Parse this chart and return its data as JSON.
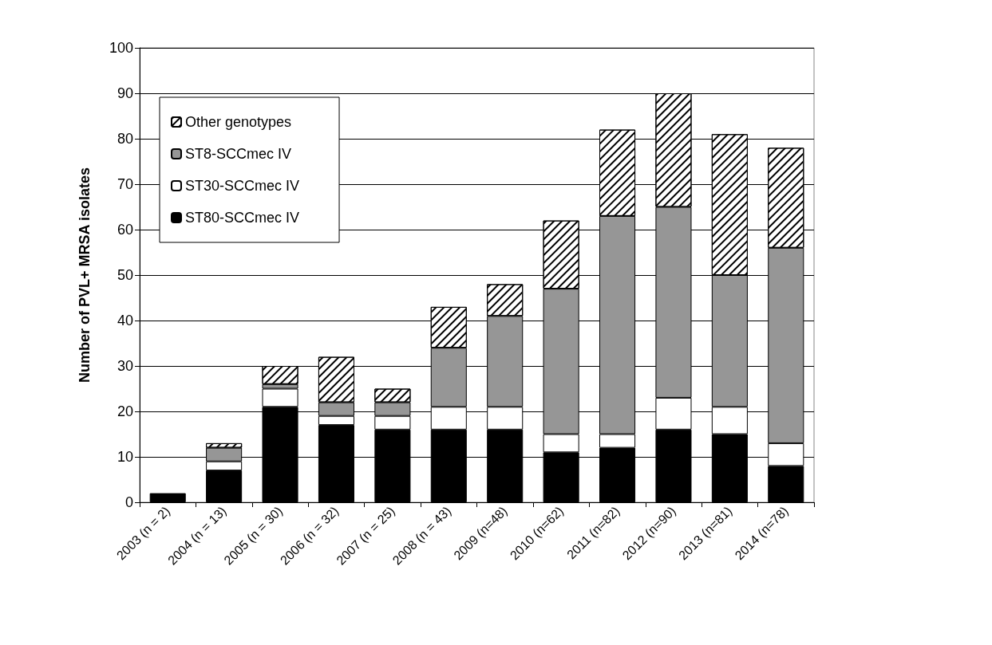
{
  "chart_data": {
    "type": "bar",
    "stacked": true,
    "ylabel": "Number of PVL+ MRSA isolates",
    "categories": [
      "2003 (n = 2)",
      "2004 (n = 13)",
      "2005 (n = 30)",
      "2006 (n = 32)",
      "2007 (n = 25)",
      "2008 (n = 43)",
      "2009 (n=48)",
      "2010 (n=62)",
      "2011 (n=82)",
      "2012 (n=90)",
      "2013 (n=81)",
      "2014 (n=78)"
    ],
    "series": [
      {
        "name": "ST80-SCCmec IV",
        "color": "#000000",
        "values": [
          2,
          7,
          21,
          17,
          16,
          16,
          16,
          11,
          12,
          16,
          15,
          8
        ]
      },
      {
        "name": "ST30-SCCmec IV",
        "color": "#ffffff",
        "values": [
          null,
          2,
          4,
          2,
          3,
          5,
          5,
          4,
          3,
          7,
          6,
          5
        ]
      },
      {
        "name": "ST8-SCCmec IV",
        "color": "#969696",
        "values": [
          null,
          3,
          1,
          3,
          3,
          13,
          20,
          32,
          48,
          42,
          29,
          43
        ]
      },
      {
        "name": "Other genotypes",
        "color": "#ffffff",
        "values": [
          null,
          1,
          4,
          10,
          3,
          9,
          7,
          15,
          19,
          25,
          31,
          22
        ]
      }
    ],
    "ylim": [
      0,
      100
    ],
    "yticks": [
      0,
      10,
      20,
      30,
      40,
      50,
      60,
      70,
      80,
      90,
      100
    ],
    "grid": "y",
    "legend": "top left"
  }
}
